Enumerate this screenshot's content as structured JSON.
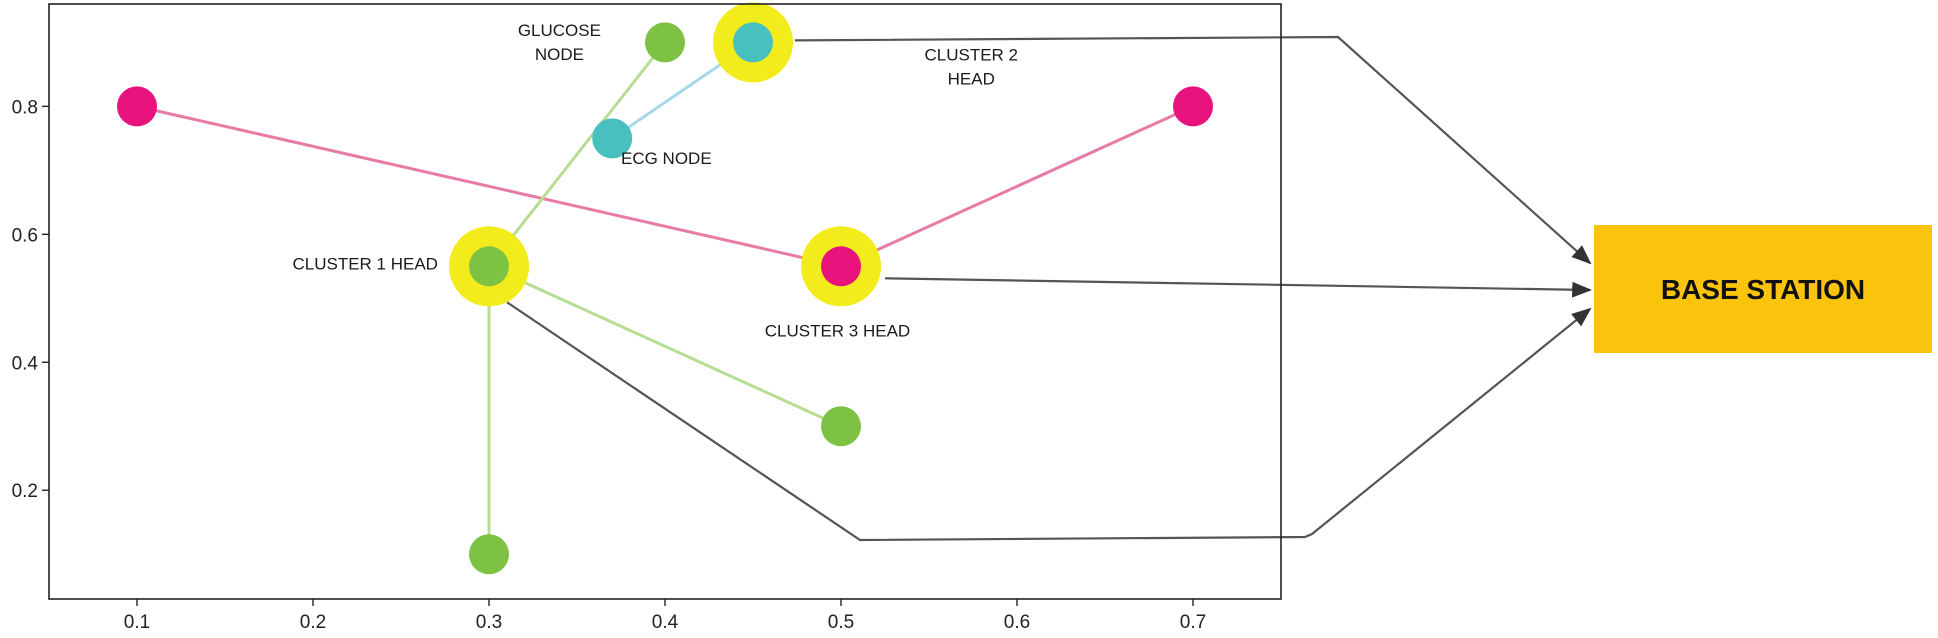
{
  "chart_data": {
    "type": "scatter",
    "title": "",
    "xlabel": "",
    "ylabel": "",
    "xlim": [
      0.05,
      0.75
    ],
    "ylim": [
      0.03,
      0.96
    ],
    "grid": false,
    "x_ticks": [
      0.1,
      0.2,
      0.3,
      0.4,
      0.5,
      0.6,
      0.7
    ],
    "x_tick_labels": [
      "0.1",
      "0.2",
      "0.3",
      "0.4",
      "0.5",
      "0.6",
      "0.7"
    ],
    "y_ticks": [
      0.2,
      0.4,
      0.6,
      0.8
    ],
    "y_tick_labels": [
      "0.2",
      "0.4",
      "0.6",
      "0.8"
    ],
    "points": [
      {
        "id": "p1",
        "x": 0.1,
        "y": 0.8,
        "color": "#e8127c",
        "head": false
      },
      {
        "id": "p2",
        "x": 0.7,
        "y": 0.8,
        "color": "#e8127c",
        "head": false
      },
      {
        "id": "p3",
        "x": 0.5,
        "y": 0.55,
        "color": "#e8127c",
        "head": true
      },
      {
        "id": "p4",
        "x": 0.3,
        "y": 0.55,
        "color": "#7dc242",
        "head": true
      },
      {
        "id": "p5",
        "x": 0.4,
        "y": 0.9,
        "color": "#7dc242",
        "head": false
      },
      {
        "id": "p6",
        "x": 0.5,
        "y": 0.3,
        "color": "#7dc242",
        "head": false
      },
      {
        "id": "p7",
        "x": 0.3,
        "y": 0.1,
        "color": "#7dc242",
        "head": false
      },
      {
        "id": "p8",
        "x": 0.45,
        "y": 0.9,
        "color": "#49c0c0",
        "head": true
      },
      {
        "id": "p9",
        "x": 0.37,
        "y": 0.75,
        "color": "#49c0c0",
        "head": false
      }
    ],
    "links": [
      {
        "from": "p1",
        "to": "p3",
        "color": "#e87aa6"
      },
      {
        "from": "p2",
        "to": "p3",
        "color": "#e87aa6"
      },
      {
        "from": "p5",
        "to": "p4",
        "color": "#b7dd95"
      },
      {
        "from": "p6",
        "to": "p4",
        "color": "#b7dd95"
      },
      {
        "from": "p7",
        "to": "p4",
        "color": "#b7dd95"
      },
      {
        "from": "p9",
        "to": "p8",
        "color": "#a6d8ea"
      }
    ],
    "head_halo_color": "#f2ec1c",
    "annotations": [
      {
        "id": "glucose",
        "lines": [
          "GLUCOSE",
          "NODE"
        ],
        "x": 0.34,
        "y": 0.91,
        "anchor": "middle"
      },
      {
        "id": "cluster2",
        "lines": [
          "CLUSTER 2",
          "HEAD"
        ],
        "x": 0.574,
        "y": 0.872,
        "anchor": "middle"
      },
      {
        "id": "ecg",
        "lines": [
          "ECG NODE"
        ],
        "x": 0.375,
        "y": 0.71,
        "anchor": "start"
      },
      {
        "id": "cluster1",
        "lines": [
          "CLUSTER 1 HEAD"
        ],
        "x": 0.271,
        "y": 0.545,
        "anchor": "end"
      },
      {
        "id": "cluster3",
        "lines": [
          "CLUSTER 3 HEAD"
        ],
        "x": 0.498,
        "y": 0.44,
        "anchor": "middle"
      }
    ]
  },
  "base_station": {
    "label": "BASE STATION",
    "fill_color": "#fac40c"
  },
  "uplinks": [
    {
      "from": "p8",
      "color": "#555555"
    },
    {
      "from": "p3",
      "color": "#555555"
    },
    {
      "from": "p4",
      "color": "#555555"
    }
  ]
}
